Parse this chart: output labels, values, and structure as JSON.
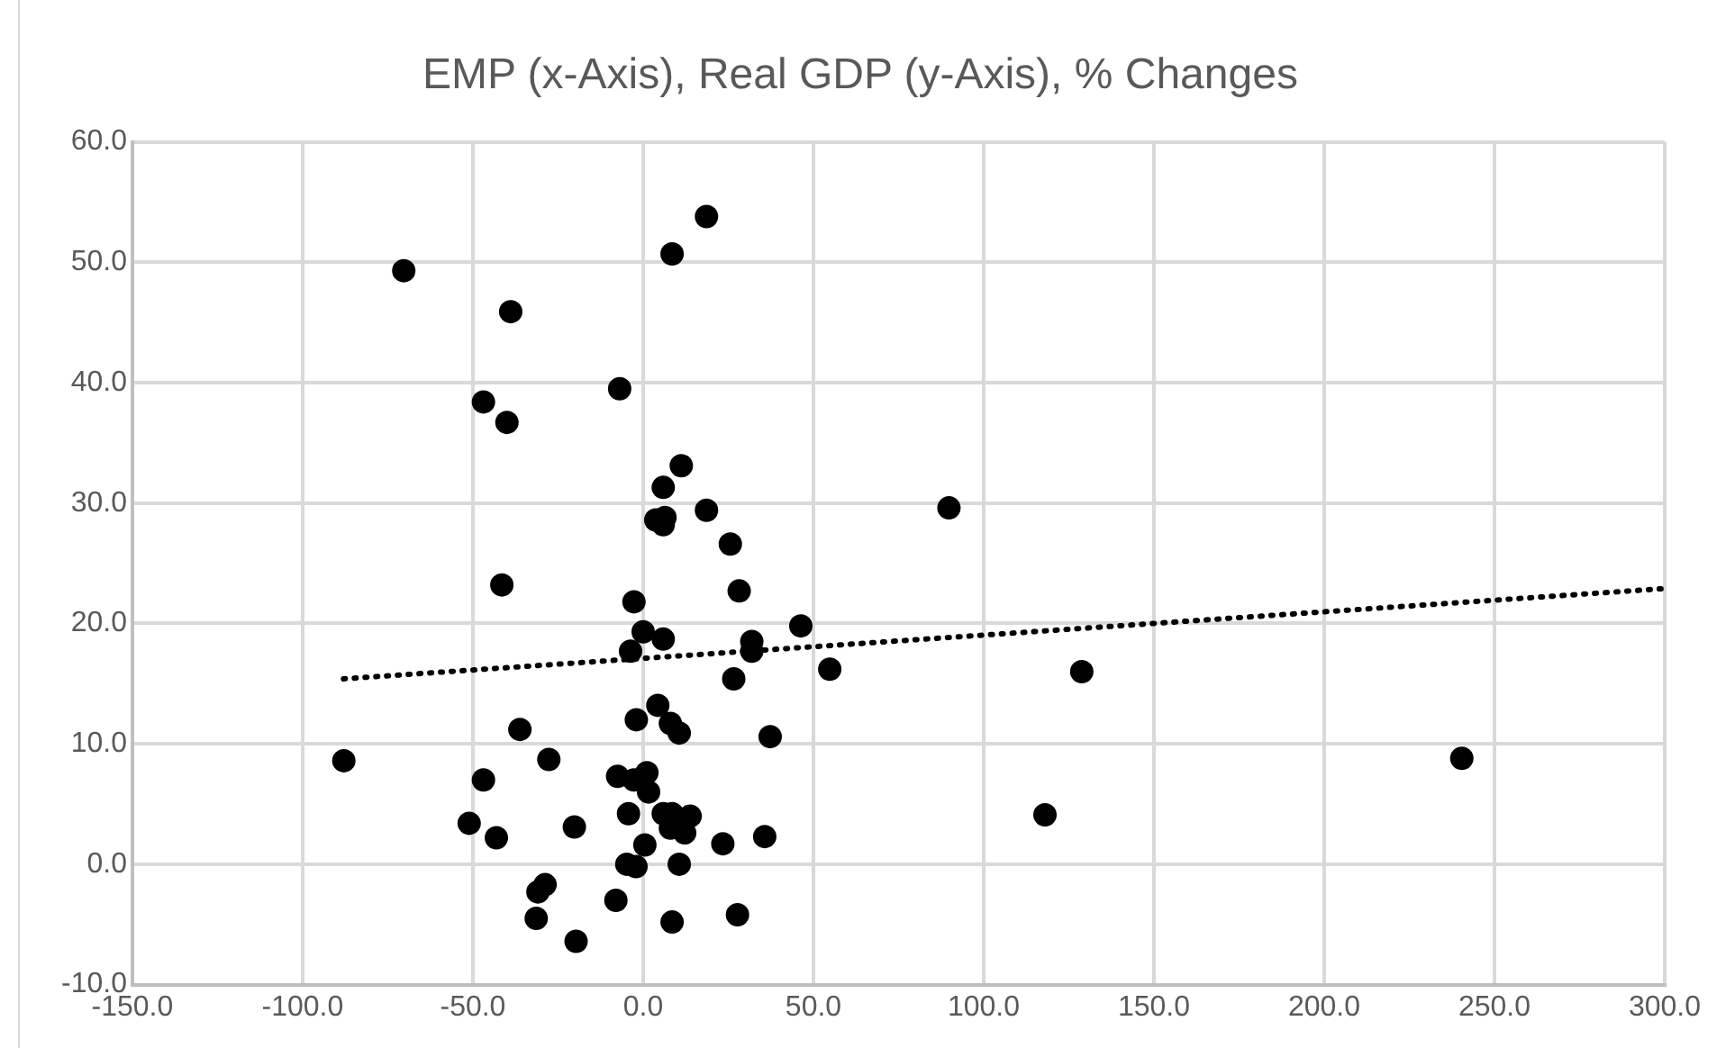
{
  "chart_data": {
    "type": "scatter",
    "title": "EMP (x-Axis), Real GDP (y-Axis), % Changes",
    "series": [
      {
        "color": "#000000",
        "marker": "circle",
        "x": [
          -70.3,
          -38.9,
          -46.9,
          -40,
          -6.9,
          8.5,
          18.6,
          -41.5,
          -2.7,
          11.2,
          5.9,
          3.7,
          6.4,
          5.9,
          18.6,
          25.6,
          28.2,
          46.3,
          0,
          -3.7,
          5.9,
          31.9,
          31.9,
          54.8,
          26.6,
          4.3,
          -2,
          8,
          10.6,
          37.3,
          -36.2,
          -27.7,
          -87.9,
          -46.9,
          -7.5,
          -2.7,
          1.1,
          1.6,
          -4.3,
          5.9,
          8.5,
          13.8,
          8,
          12.2,
          -51.1,
          -43.1,
          -20.2,
          23.4,
          35.7,
          0.5,
          -4.8,
          -2.1,
          10.6,
          -28.8,
          -30.9,
          -8,
          -31.4,
          27.7,
          8.5,
          -19.7,
          89.8,
          128.8,
          118,
          240.4
        ],
        "values": [
          49.3,
          45.9,
          38.4,
          36.7,
          39.5,
          50.7,
          53.8,
          23.2,
          21.8,
          33.1,
          31.3,
          28.6,
          28.8,
          28.2,
          29.4,
          26.6,
          22.7,
          19.8,
          19.3,
          17.7,
          18.7,
          18.5,
          17.7,
          16.2,
          15.4,
          13.2,
          12,
          11.7,
          10.9,
          10.6,
          11.2,
          8.7,
          8.6,
          7,
          7.3,
          7,
          7.6,
          6,
          4.2,
          4.2,
          4.2,
          4,
          3,
          2.6,
          3.4,
          2.2,
          3.1,
          1.7,
          2.3,
          1.6,
          0,
          -0.2,
          0,
          -1.7,
          -2.3,
          -3,
          -4.5,
          -4.2,
          -4.8,
          -6.4,
          29.6,
          16,
          4.1,
          8.8
        ]
      },
      {
        "type": "line",
        "color": "#000000",
        "line_style": "dotted",
        "marker": "none",
        "x": [
          -88,
          300
        ],
        "values": [
          15.4,
          22.9
        ]
      }
    ],
    "xlim": [
      -150,
      300
    ],
    "xticks": [
      {
        "value": -150,
        "label": "-150.0"
      },
      {
        "value": -100,
        "label": "-100.0"
      },
      {
        "value": -50,
        "label": "-50.0"
      },
      {
        "value": 0,
        "label": "0.0"
      },
      {
        "value": 50,
        "label": "50.0"
      },
      {
        "value": 100,
        "label": "100.0"
      },
      {
        "value": 150,
        "label": "150.0"
      },
      {
        "value": 200,
        "label": "200.0"
      },
      {
        "value": 250,
        "label": "250.0"
      },
      {
        "value": 300,
        "label": "300.0"
      }
    ],
    "ylim": [
      -10,
      60
    ],
    "yticks": [
      {
        "value": -10,
        "label": "-10.0"
      },
      {
        "value": 0,
        "label": "0.0"
      },
      {
        "value": 10,
        "label": "10.0"
      },
      {
        "value": 20,
        "label": "20.0"
      },
      {
        "value": 30,
        "label": "30.0"
      },
      {
        "value": 40,
        "label": "40.0"
      },
      {
        "value": 50,
        "label": "50.0"
      },
      {
        "value": 60,
        "label": "60.0"
      }
    ],
    "grid": true,
    "legend": false
  }
}
